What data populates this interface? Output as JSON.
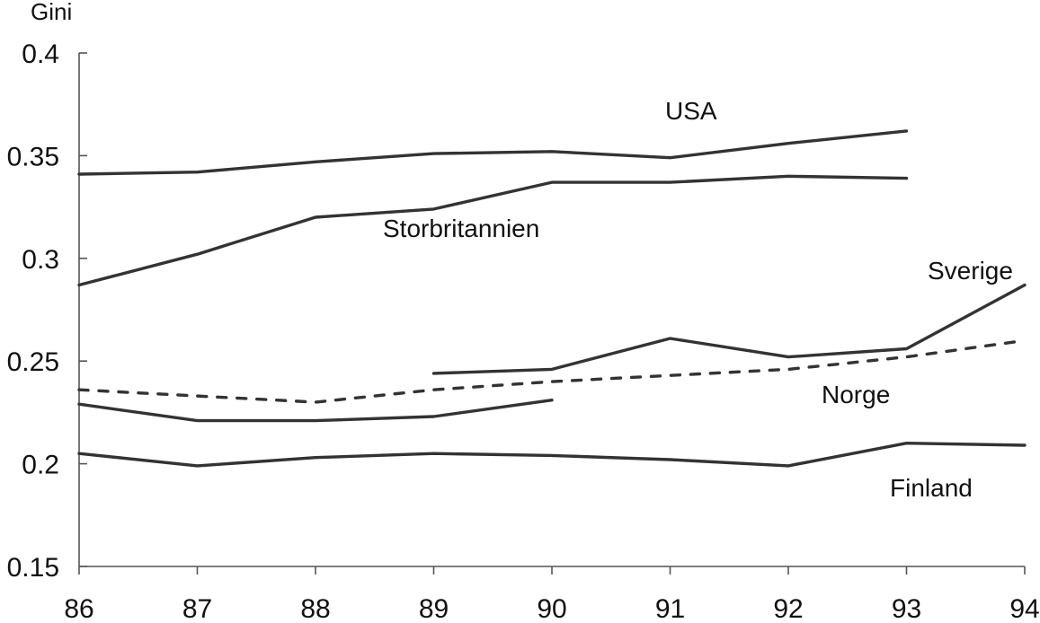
{
  "chart_data": {
    "type": "line",
    "ylabel": "Gini",
    "xlabel": "",
    "x": [
      86,
      87,
      88,
      89,
      90,
      91,
      92,
      93,
      94
    ],
    "x_tick_labels": [
      "86",
      "87",
      "88",
      "89",
      "90",
      "91",
      "92",
      "93",
      "94"
    ],
    "ylim": [
      0.15,
      0.4
    ],
    "y_ticks": [
      0.15,
      0.2,
      0.25,
      0.3,
      0.35,
      0.4
    ],
    "y_tick_labels": [
      "0.15",
      "0.2",
      "0.25",
      "0.3",
      "0.35",
      "0.4"
    ],
    "grid": false,
    "legend": "inline labels",
    "series": [
      {
        "name": "USA",
        "color": "#333333",
        "dash": "solid",
        "x": [
          86,
          87,
          88,
          89,
          90,
          91,
          92,
          93
        ],
        "values": [
          0.341,
          0.342,
          0.347,
          0.351,
          0.352,
          0.349,
          0.356,
          0.362
        ]
      },
      {
        "name": "Storbritannien",
        "color": "#333333",
        "dash": "solid",
        "x": [
          86,
          87,
          88,
          89,
          90,
          91,
          92,
          93
        ],
        "values": [
          0.287,
          0.302,
          0.32,
          0.324,
          0.337,
          0.337,
          0.34,
          0.339
        ]
      },
      {
        "name": "Sverige",
        "color": "#333333",
        "dash": "solid",
        "x": [
          89,
          90,
          91,
          92,
          93,
          94
        ],
        "values": [
          0.244,
          0.246,
          0.261,
          0.252,
          0.256,
          0.287
        ]
      },
      {
        "name": "Norge",
        "color": "#333333",
        "dash": "dashed",
        "x": [
          86,
          87,
          88,
          89,
          90,
          91,
          92,
          93,
          94
        ],
        "values": [
          0.236,
          0.233,
          0.23,
          0.236,
          0.24,
          0.243,
          0.246,
          0.252,
          0.26
        ]
      },
      {
        "name": "",
        "color": "#333333",
        "dash": "solid",
        "x": [
          86,
          87,
          88,
          89,
          90
        ],
        "values": [
          0.229,
          0.221,
          0.221,
          0.223,
          0.231
        ]
      },
      {
        "name": "Finland",
        "color": "#333333",
        "dash": "solid",
        "x": [
          86,
          87,
          88,
          89,
          90,
          91,
          92,
          93,
          94
        ],
        "values": [
          0.205,
          0.199,
          0.203,
          0.205,
          0.204,
          0.202,
          0.199,
          0.21,
          0.209
        ]
      }
    ]
  }
}
